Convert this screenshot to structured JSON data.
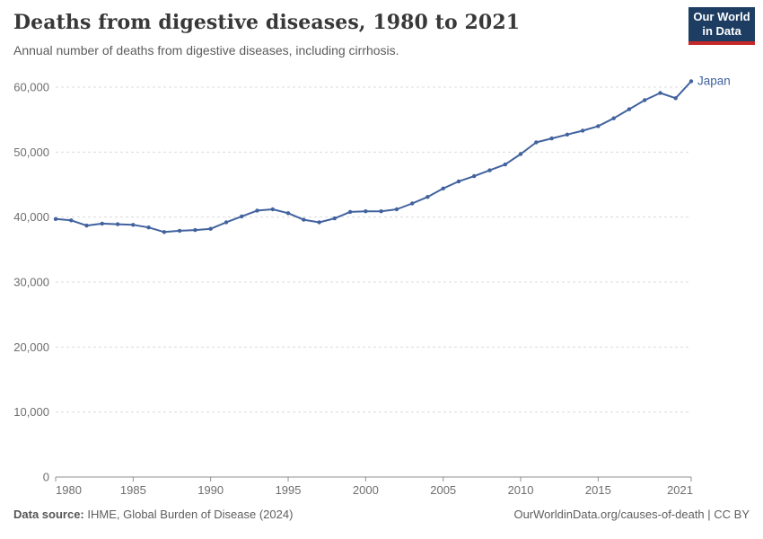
{
  "header": {
    "title": "Deaths from digestive diseases, 1980 to 2021",
    "subtitle": "Annual number of deaths from digestive diseases, including cirrhosis.",
    "logo": {
      "line1": "Our World",
      "line2": "in Data",
      "bg_color": "#1d3d63",
      "accent_color": "#c62828"
    }
  },
  "chart_data": {
    "type": "line",
    "title": "Deaths from digestive diseases, 1980 to 2021",
    "xlabel": "",
    "ylabel": "",
    "xlim": [
      1980,
      2021
    ],
    "ylim": [
      0,
      60000
    ],
    "x_ticks": [
      1980,
      1985,
      1990,
      1995,
      2000,
      2005,
      2010,
      2015,
      2021
    ],
    "y_ticks": [
      0,
      10000,
      20000,
      30000,
      40000,
      50000,
      60000
    ],
    "grid": "horizontal-dashed",
    "legend_position": "end-of-line-label",
    "colors": {
      "line": "#41629e",
      "grid": "#dcdcdc",
      "axis": "#8f8f8f",
      "tick_label": "#6e6e6e"
    },
    "x": [
      1980,
      1981,
      1982,
      1983,
      1984,
      1985,
      1986,
      1987,
      1988,
      1989,
      1990,
      1991,
      1992,
      1993,
      1994,
      1995,
      1996,
      1997,
      1998,
      1999,
      2000,
      2001,
      2002,
      2003,
      2004,
      2005,
      2006,
      2007,
      2008,
      2009,
      2010,
      2011,
      2012,
      2013,
      2014,
      2015,
      2016,
      2017,
      2018,
      2019,
      2020,
      2021
    ],
    "series": [
      {
        "name": "Japan",
        "color": "#41629e",
        "values": [
          39700,
          39500,
          38700,
          39000,
          38900,
          38800,
          38400,
          37700,
          37900,
          38000,
          38200,
          39200,
          40100,
          41000,
          41200,
          40600,
          39600,
          39200,
          39800,
          40800,
          40900,
          40900,
          41200,
          42100,
          43100,
          44400,
          45500,
          46300,
          47200,
          48100,
          49700,
          51500,
          52100,
          52700,
          53300,
          54000,
          55200,
          56600,
          58000,
          59100,
          58300,
          60900
        ]
      }
    ]
  },
  "footer": {
    "source_label": "Data source:",
    "source_text": " IHME, Global Burden of Disease (2024)",
    "credit": "OurWorldinData.org/causes-of-death | CC BY"
  }
}
